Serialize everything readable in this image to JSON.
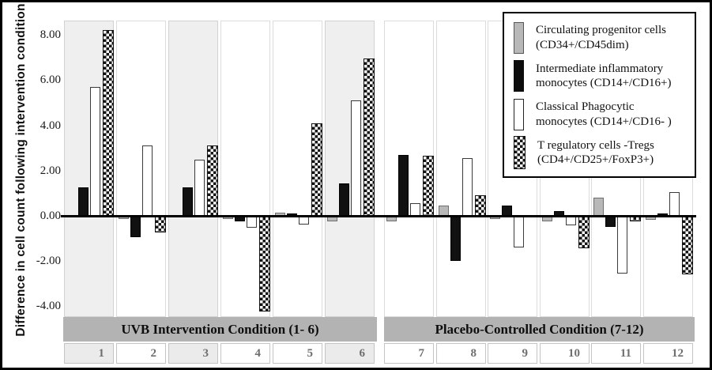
{
  "figure": {
    "y_axis_title": "Difference in cell count following intervention condition",
    "tick_labels": [
      "8.00",
      "6.00",
      "4.00",
      "2.00",
      "0.00",
      "-2.00",
      "-4.00"
    ],
    "tick_values": [
      8,
      6,
      4,
      2,
      0,
      -2,
      -4
    ]
  },
  "chart_data": {
    "type": "bar",
    "categories": [
      "1",
      "2",
      "3",
      "4",
      "5",
      "6",
      "7",
      "8",
      "9",
      "10",
      "11",
      "12"
    ],
    "series": [
      {
        "name": "Circulating progenitor cells (CD34+/CD45dim)",
        "legend_lines": [
          "Circulating progenitor cells",
          "(CD34+/CD45dim)"
        ],
        "style": "gray",
        "values": [
          0.0,
          -0.1,
          0.0,
          -0.1,
          0.15,
          -0.2,
          -0.2,
          0.45,
          -0.1,
          -0.2,
          0.8,
          -0.15
        ]
      },
      {
        "name": "Intermediate inflammatory monocytes (CD14+/CD16+)",
        "legend_lines": [
          "Intermediate inflammatory",
          "monocytes (CD14+/CD16+)"
        ],
        "style": "black",
        "values": [
          1.25,
          -0.9,
          1.25,
          -0.2,
          0.1,
          1.45,
          2.7,
          -1.95,
          0.45,
          0.2,
          -0.45,
          0.1
        ]
      },
      {
        "name": "Classical Phagocytic monocytes (CD14+/CD16- )",
        "legend_lines": [
          "Classical Phagocytic",
          "monocytes (CD14+/CD16- )"
        ],
        "style": "white",
        "values": [
          5.7,
          3.1,
          2.5,
          -0.5,
          -0.35,
          5.1,
          0.55,
          2.55,
          -1.35,
          -0.4,
          -2.5,
          1.05
        ]
      },
      {
        "name": "T regulatory cells -Tregs (CD4+/CD25+/FoxP3+)",
        "legend_lines": [
          "T regulatory cells -Tregs",
          "(CD4+/CD25+/FoxP3+)"
        ],
        "style": "checker",
        "values": [
          8.2,
          -0.7,
          3.1,
          -4.2,
          4.1,
          6.95,
          2.65,
          0.9,
          0.0,
          -1.4,
          -0.2,
          -2.55
        ]
      }
    ],
    "sections": [
      {
        "label": "UVB Intervention Condition (1- 6)",
        "categories": [
          "1",
          "2",
          "3",
          "4",
          "5",
          "6"
        ]
      },
      {
        "label": "Placebo-Controlled Condition (7-12)",
        "categories": [
          "7",
          "8",
          "9",
          "10",
          "11",
          "12"
        ]
      }
    ],
    "shaded_categories": [
      "1",
      "3",
      "6"
    ],
    "ylim": [
      -4.5,
      8.6
    ],
    "grid": false,
    "legend_position": "top-right",
    "colors": {
      "gray_bar": "#b8b8b8",
      "black_bar": "#111111",
      "white_bar": "#ffffff",
      "checker_dark": "#141414",
      "band_background": "#b3b3b3",
      "shaded_stripe": "#efefef",
      "category_number": "#6e6e6e"
    }
  }
}
